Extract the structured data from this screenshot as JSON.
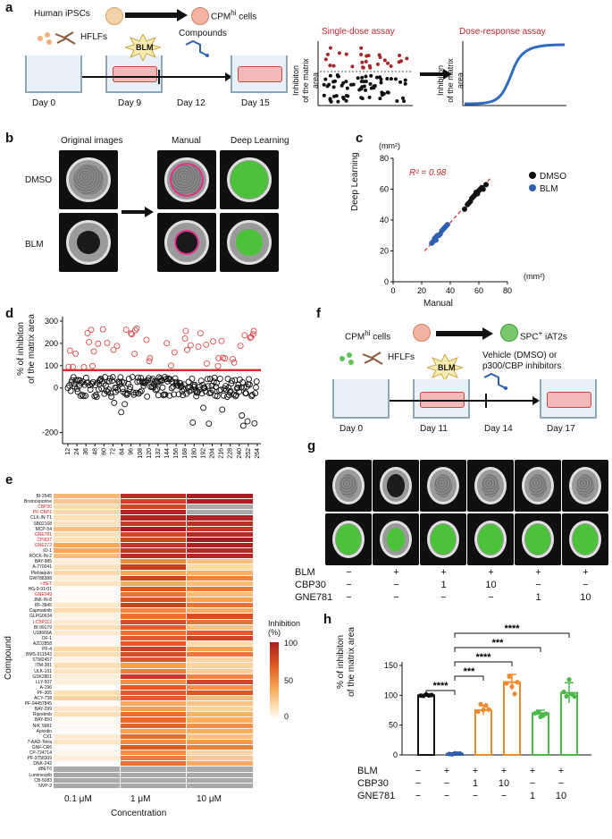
{
  "panel_a": {
    "label": "a",
    "human_ipscs": "Human iPSCs",
    "cpm_cells": "CPM",
    "cpm_sup": "hi",
    "cpm_tail": " cells",
    "hflfs": "HFLFs",
    "blm": "BLM",
    "compounds": "Compounds",
    "days": [
      "Day 0",
      "Day 9",
      "Day 12",
      "Day 15"
    ],
    "single_dose": "Single-dose assay",
    "dose_response": "Dose-response assay",
    "ylabel_line1": "Inhibiton",
    "ylabel_line2": "of the matrix area"
  },
  "panel_b": {
    "label": "b",
    "col_titles": [
      "Original images",
      "Manual",
      "Deep Learning"
    ],
    "row_labels": [
      "DMSO",
      "BLM"
    ]
  },
  "panel_c": {
    "label": "c",
    "r2": "R² = 0.98",
    "unit_y": "(mm²)",
    "unit_x": "(mm²)",
    "xlabel": "Manual",
    "ylabel": "Deep Learning",
    "legend": [
      "DMSO",
      "BLM"
    ],
    "x_ticks": [
      "0",
      "20",
      "40",
      "60",
      "80"
    ],
    "y_ticks": [
      "0",
      "20",
      "40",
      "60",
      "80"
    ]
  },
  "panel_d": {
    "label": "d",
    "ylabel_line1": "% of inhibiton",
    "ylabel_line2": "of the matrix area",
    "y_ticks": [
      "300",
      "200",
      "100",
      "0",
      "-200"
    ],
    "x_ticks": [
      "12",
      "24",
      "36",
      "48",
      "60",
      "72",
      "84",
      "96",
      "108",
      "120",
      "132",
      "144",
      "156",
      "168",
      "180",
      "192",
      "204",
      "216",
      "228",
      "240",
      "252",
      "264"
    ]
  },
  "panel_e": {
    "label": "e",
    "ylabel": "Compound",
    "xlabel": "Concentration",
    "x_ticks": [
      "0.1 μM",
      "1 μM",
      "10 μM"
    ],
    "legend_title": "Inhibition (%)",
    "legend_ticks": [
      "100",
      "50",
      "0"
    ],
    "compounds": [
      "BI-2545",
      "Bromosporine",
      "CBP30",
      "PF-CBP1",
      "CLK-IN-T1",
      "SB02168",
      "MCP-54",
      "GNE781",
      "CPI637",
      "GNE272",
      "IO-1",
      "ROCK-IN-2",
      "BAY-985",
      "A-770041",
      "Plebiaquin",
      "GW788388",
      "I-BET",
      "HG-9-91-01",
      "GNE049",
      "JNK-IN-8",
      "PF-3845",
      "Capmatinib",
      "GLPG0634",
      "I-CBP112",
      "BI 99179",
      "U18666A",
      "OF-1",
      "AZD2858",
      "PF-4",
      "BMS-911543",
      "STM2457",
      "ITM-381",
      "ULK-101",
      "GSK2801",
      "LLY-507",
      "A-196",
      "PF-305",
      "ACY-738",
      "PF-04457845",
      "BAY-299",
      "Ripretinib",
      "BAY-850",
      "NIK SMI1",
      "Apicidin",
      "CX1",
      "7-AAD-Tetra",
      "GNF-CR6",
      "CP-724714",
      "PF-3758309",
      "DNK-242",
      "dBET6",
      "Luminespib",
      "CB-5083",
      "NVP-2"
    ],
    "highlighted": [
      "CBP30",
      "PF-CBP1",
      "GNE781",
      "CPI637",
      "GNE272",
      "I-BET",
      "GNE049",
      "I-CBP112"
    ]
  },
  "panel_f": {
    "label": "f",
    "cpm_cells": "CPM",
    "cpm_sup": "hi",
    "cpm_tail": " cells",
    "spc_cells": "SPC",
    "spc_sup": "+",
    "spc_tail": " iAT2s",
    "hflfs": "HFLFs",
    "blm": "BLM",
    "vehicle": "Vehicle (DMSO) or",
    "inhibitors": "p300/CBP inhibitors",
    "days": [
      "Day 0",
      "Day 11",
      "Day 14",
      "Day 17"
    ]
  },
  "panel_g": {
    "label": "g",
    "row_labels": [
      "BLM",
      "CBP30",
      "GNE781"
    ],
    "cols": [
      [
        "−",
        "−",
        "−"
      ],
      [
        "+",
        "−",
        "−"
      ],
      [
        "+",
        "1",
        "−"
      ],
      [
        "+",
        "10",
        "−"
      ],
      [
        "+",
        "−",
        "1"
      ],
      [
        "+",
        "−",
        "10"
      ]
    ]
  },
  "panel_h": {
    "label": "h",
    "ylabel_line1": "% of inhibiton",
    "ylabel_line2": "of the matrix area",
    "y_ticks": [
      "150",
      "100",
      "50",
      "0"
    ],
    "row_labels": [
      "BLM",
      "CBP30",
      "GNE781"
    ],
    "cols": [
      [
        "−",
        "−",
        "−"
      ],
      [
        "+",
        "−",
        "−"
      ],
      [
        "+",
        "1",
        "−"
      ],
      [
        "+",
        "10",
        "−"
      ],
      [
        "+",
        "−",
        "1"
      ],
      [
        "+",
        "−",
        "10"
      ]
    ],
    "sig": [
      "****",
      "***",
      "****",
      "***",
      "****"
    ]
  },
  "chart_data": [
    {
      "type": "scatter",
      "id": "panel_c",
      "xlabel": "Manual",
      "ylabel": "Deep Learning",
      "xlim": [
        0,
        80
      ],
      "ylim": [
        0,
        80
      ],
      "series": [
        {
          "name": "DMSO",
          "color": "#111111",
          "x": [
            50,
            52,
            54,
            55,
            56,
            57,
            58,
            60,
            61,
            62,
            63,
            65,
            53,
            59
          ],
          "y": [
            47,
            50,
            52,
            54,
            55,
            56,
            58,
            59,
            60,
            61,
            60,
            63,
            51,
            57
          ]
        },
        {
          "name": "BLM",
          "color": "#2f5fae",
          "x": [
            27,
            28,
            29,
            30,
            31,
            32,
            33,
            34,
            35,
            36,
            37,
            38,
            30
          ],
          "y": [
            25,
            26,
            28,
            29,
            30,
            30,
            31,
            33,
            34,
            35,
            36,
            37,
            27
          ]
        }
      ],
      "annotation": "R² = 0.98"
    },
    {
      "type": "bar",
      "id": "panel_h",
      "categories": [
        "1",
        "2",
        "3",
        "4",
        "5",
        "6"
      ],
      "values": [
        100,
        2,
        75,
        122,
        70,
        104
      ],
      "errors": [
        1,
        1,
        8,
        13,
        5,
        17
      ],
      "colors": [
        "#111111",
        "#2f5fae",
        "#ef8a2f",
        "#ef8a2f",
        "#4cb84a",
        "#4cb84a"
      ],
      "ylim": [
        0,
        150
      ]
    },
    {
      "type": "heatmap",
      "id": "panel_e",
      "x": [
        "0.1 μM",
        "1 μM",
        "10 μM"
      ],
      "value_range": [
        0,
        100
      ],
      "rows": 54
    }
  ]
}
